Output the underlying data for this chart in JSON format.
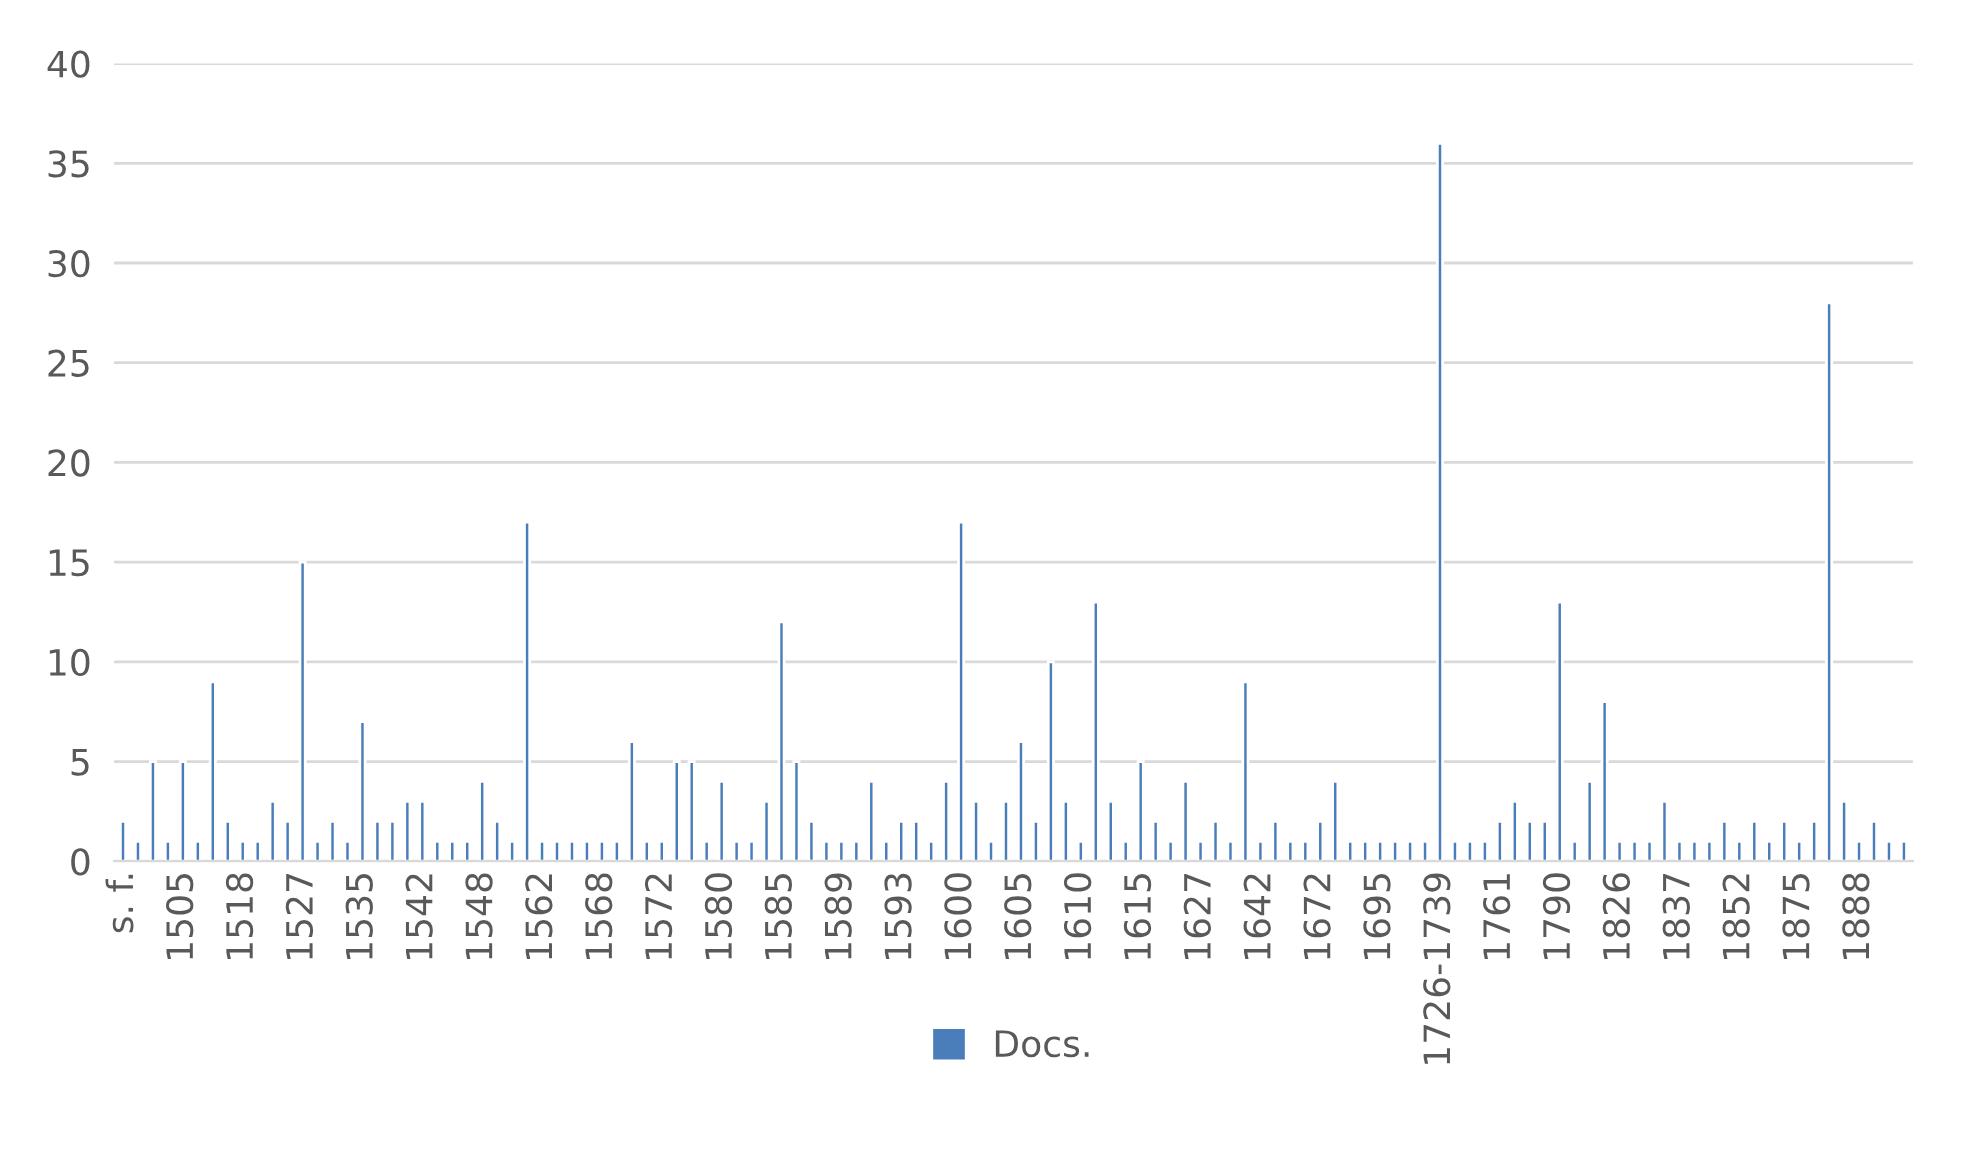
{
  "chart_data": {
    "type": "bar",
    "categories": [
      "s. f.",
      null,
      null,
      null,
      "1505",
      null,
      null,
      null,
      "1518",
      null,
      null,
      null,
      "1527",
      null,
      null,
      null,
      "1535",
      null,
      null,
      null,
      "1542",
      null,
      null,
      null,
      "1548",
      null,
      null,
      null,
      "1562",
      null,
      null,
      null,
      "1568",
      null,
      null,
      null,
      "1572",
      null,
      null,
      null,
      "1580",
      null,
      null,
      null,
      "1585",
      null,
      null,
      null,
      "1589",
      null,
      null,
      null,
      "1593",
      null,
      null,
      null,
      "1600",
      null,
      null,
      null,
      "1605",
      null,
      null,
      null,
      "1610",
      null,
      null,
      null,
      "1615",
      null,
      null,
      null,
      "1627",
      null,
      null,
      null,
      "1642",
      null,
      null,
      null,
      "1672",
      null,
      null,
      null,
      "1695",
      null,
      null,
      null,
      "1726-1739",
      null,
      null,
      null,
      "1761",
      null,
      null,
      null,
      "1790",
      null,
      null,
      null,
      "1826",
      null,
      null,
      null,
      "1837",
      null,
      null,
      null,
      "1852",
      null,
      null,
      null,
      "1875",
      null,
      null,
      null,
      "1888",
      null,
      null,
      null
    ],
    "series": [
      {
        "name": "Docs.",
        "color": "#4a7ebb",
        "values": [
          2,
          1,
          5,
          1,
          5,
          1,
          9,
          2,
          1,
          1,
          3,
          2,
          15,
          1,
          2,
          1,
          7,
          2,
          2,
          3,
          3,
          1,
          1,
          1,
          4,
          2,
          1,
          17,
          1,
          1,
          1,
          1,
          1,
          1,
          6,
          1,
          1,
          5,
          5,
          1,
          4,
          1,
          1,
          3,
          12,
          5,
          2,
          1,
          1,
          1,
          4,
          1,
          2,
          2,
          1,
          4,
          17,
          3,
          1,
          3,
          6,
          2,
          10,
          3,
          1,
          13,
          3,
          1,
          5,
          2,
          1,
          4,
          1,
          2,
          1,
          9,
          1,
          2,
          1,
          1,
          2,
          4,
          1,
          1,
          1,
          1,
          1,
          1,
          36,
          1,
          1,
          1,
          2,
          3,
          2,
          2,
          13,
          1,
          4,
          8,
          1,
          1,
          1,
          3,
          1,
          1,
          1,
          2,
          1,
          2,
          1,
          2,
          1,
          2,
          28,
          3,
          1,
          2,
          1,
          1
        ]
      }
    ],
    "ylim": [
      0,
      40
    ],
    "yticks": [
      0,
      5,
      10,
      15,
      20,
      25,
      30,
      35,
      40
    ],
    "grid": "y",
    "legend": "bottom"
  }
}
